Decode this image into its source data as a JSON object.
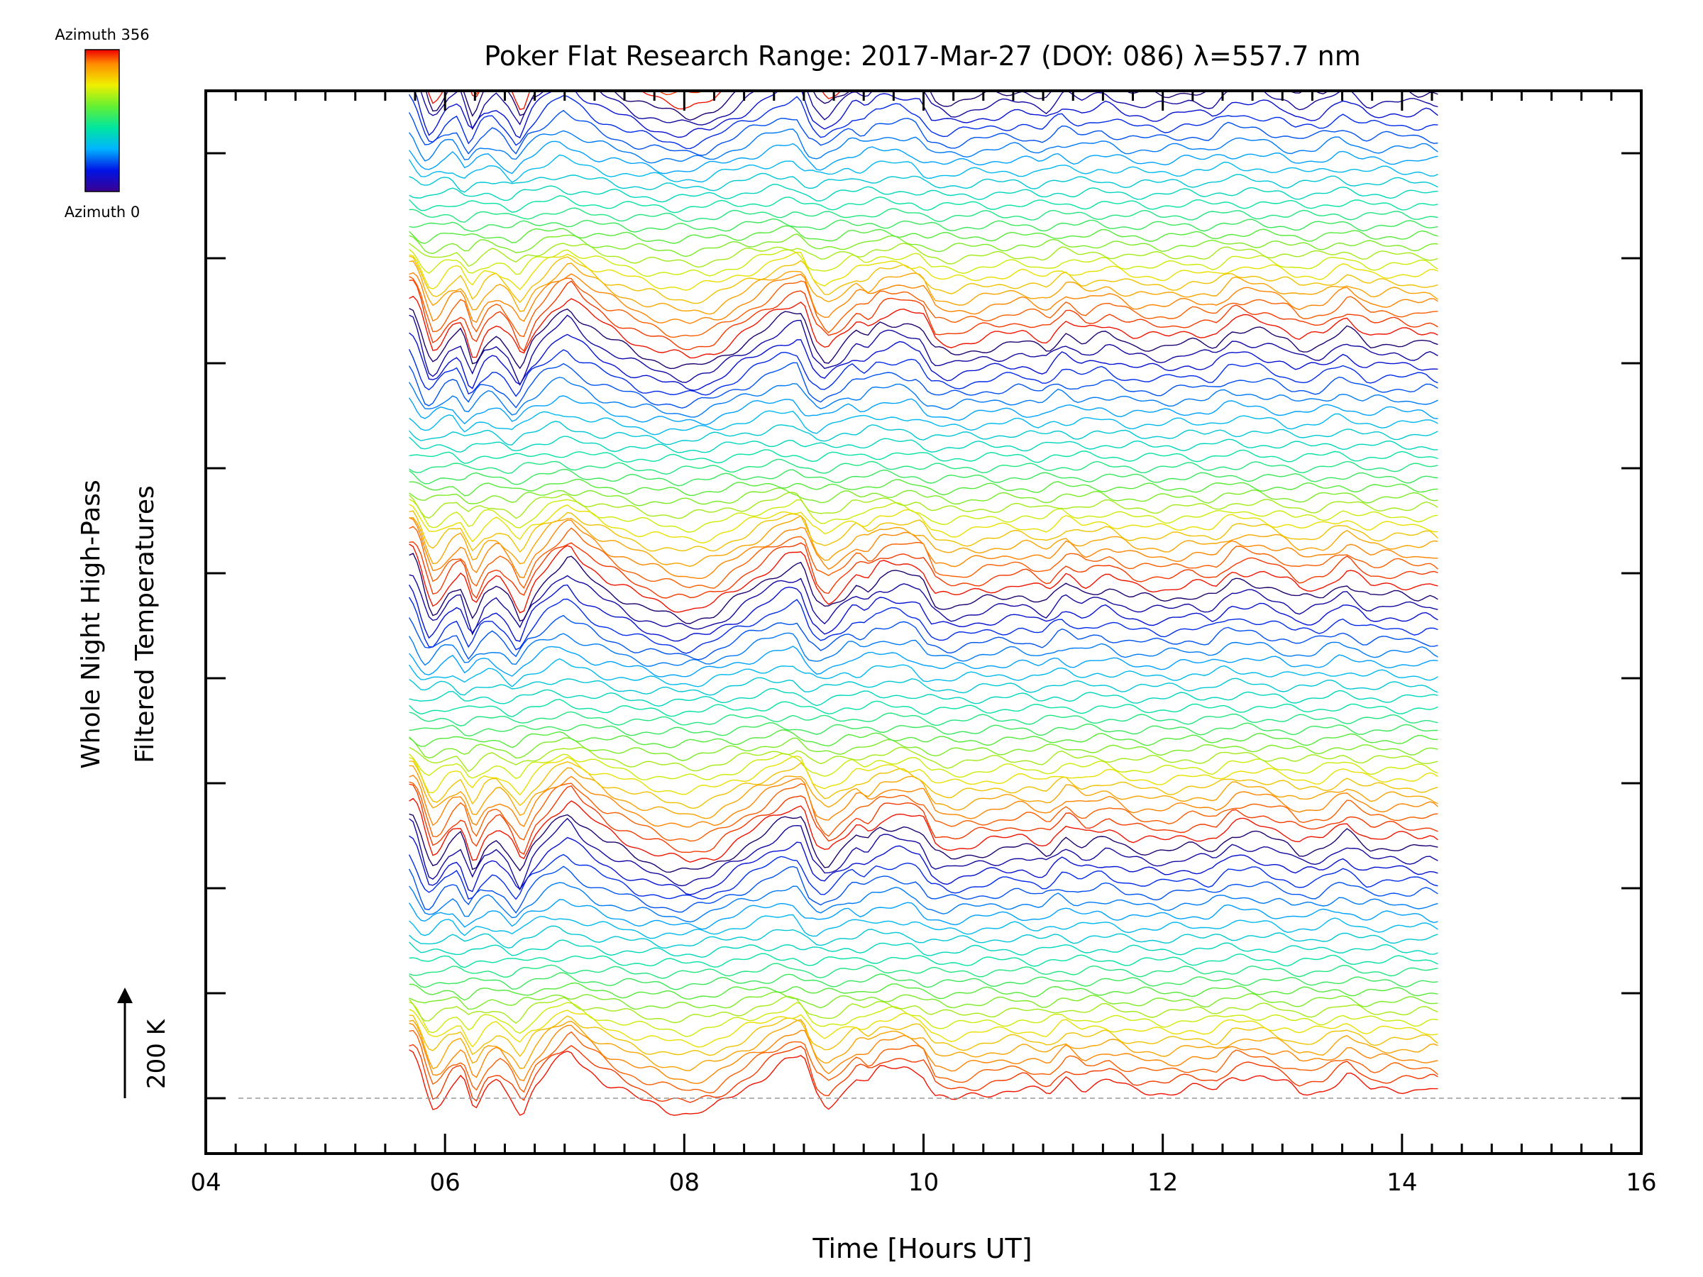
{
  "chart_data": {
    "type": "line",
    "title": "Poker Flat Research Range: 2017-Mar-27 (DOY: 086) λ=557.7 nm",
    "xlabel": "Time [Hours UT]",
    "ylabel_lines": [
      "Whole Night High-Pass",
      "Filtered Temperatures"
    ],
    "xlim": [
      4,
      16
    ],
    "x_ticks": [
      "04",
      "06",
      "08",
      "10",
      "12",
      "14",
      "16"
    ],
    "x_minor_step": 0.25,
    "time_range": [
      5.7,
      14.3
    ],
    "n_traces": 148,
    "offset_per_trace_K": 20,
    "baseline_K": 0,
    "scale_bar": {
      "label": "200 K",
      "value_K": 200
    },
    "colorbar": {
      "top_label": "Azimuth 356",
      "bottom_label": "Azimuth 0",
      "min": 0,
      "max": 356,
      "colormap": "rainbow"
    },
    "azimuth_cycle_traces": 24,
    "grid": false,
    "common_profile": {
      "t": [
        5.7,
        5.75,
        5.8,
        5.85,
        5.9,
        6.0,
        6.1,
        6.2,
        6.3,
        6.4,
        6.5,
        6.6,
        6.7,
        6.85,
        7.0,
        7.1,
        7.3,
        7.6,
        7.8,
        8.0,
        8.2,
        8.4,
        8.6,
        8.8,
        8.95,
        9.05,
        9.15,
        9.3,
        9.4,
        9.5,
        9.6,
        9.8,
        9.95,
        10.05,
        10.2,
        10.5,
        10.8,
        11.0,
        11.15,
        11.3,
        11.5,
        11.7,
        12.0,
        12.2,
        12.4,
        12.55,
        12.8,
        13.0,
        13.1,
        13.3,
        13.5,
        13.7,
        13.9,
        14.1,
        14.2,
        14.3
      ],
      "dT_K": [
        90,
        60,
        15,
        -20,
        -15,
        25,
        40,
        -30,
        20,
        35,
        10,
        -35,
        20,
        60,
        90,
        65,
        30,
        -5,
        -20,
        -30,
        -20,
        10,
        40,
        70,
        80,
        10,
        -15,
        15,
        40,
        30,
        55,
        60,
        50,
        5,
        -5,
        10,
        20,
        5,
        40,
        20,
        35,
        15,
        10,
        20,
        15,
        45,
        40,
        25,
        10,
        15,
        45,
        15,
        20,
        15,
        20,
        10
      ]
    }
  }
}
